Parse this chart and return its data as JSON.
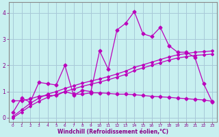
{
  "xlabel": "Windchill (Refroidissement éolien,°C)",
  "bg_color": "#c8f0f0",
  "grid_color": "#a8c8d8",
  "line_color": "#bb00bb",
  "xlim": [
    -0.5,
    23.5
  ],
  "ylim": [
    -0.15,
    4.4
  ],
  "xticks": [
    0,
    1,
    2,
    3,
    4,
    5,
    6,
    7,
    8,
    9,
    10,
    11,
    12,
    13,
    14,
    15,
    16,
    17,
    18,
    19,
    20,
    21,
    22,
    23
  ],
  "yticks": [
    0,
    1,
    2,
    3,
    4
  ],
  "x": [
    0,
    1,
    2,
    3,
    4,
    5,
    6,
    7,
    8,
    9,
    10,
    11,
    12,
    13,
    14,
    15,
    16,
    17,
    18,
    19,
    20,
    21,
    22,
    23
  ],
  "y_main": [
    0.2,
    0.75,
    0.6,
    1.35,
    1.3,
    1.25,
    2.0,
    0.85,
    1.05,
    1.0,
    2.55,
    1.85,
    3.35,
    3.6,
    4.05,
    3.2,
    3.1,
    3.45,
    2.75,
    2.5,
    2.5,
    2.3,
    1.3,
    0.6
  ],
  "y_trend1": [
    0.05,
    0.3,
    0.55,
    0.75,
    0.9,
    1.0,
    1.12,
    1.22,
    1.32,
    1.4,
    1.48,
    1.57,
    1.67,
    1.78,
    1.92,
    2.02,
    2.12,
    2.22,
    2.32,
    2.4,
    2.45,
    2.5,
    2.52,
    2.55
  ],
  "y_trend2": [
    0.0,
    0.22,
    0.45,
    0.63,
    0.78,
    0.88,
    1.0,
    1.1,
    1.2,
    1.28,
    1.36,
    1.45,
    1.55,
    1.65,
    1.8,
    1.9,
    2.0,
    2.1,
    2.2,
    2.28,
    2.33,
    2.38,
    2.4,
    2.43
  ],
  "y_flat": [
    0.65,
    0.65,
    0.72,
    0.82,
    0.85,
    0.85,
    1.0,
    0.9,
    0.9,
    0.95,
    0.95,
    0.93,
    0.9,
    0.9,
    0.88,
    0.85,
    0.82,
    0.8,
    0.78,
    0.75,
    0.73,
    0.7,
    0.68,
    0.63
  ]
}
